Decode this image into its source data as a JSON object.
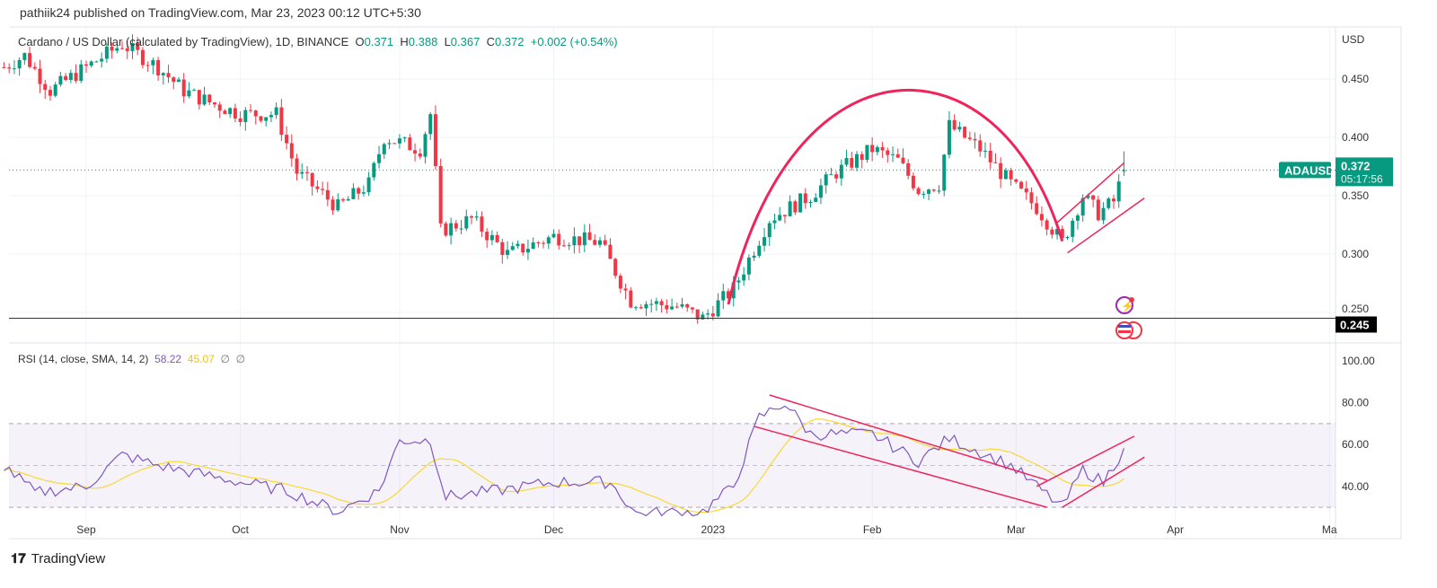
{
  "header": {
    "published": "pathiik24 published on TradingView.com, Mar 23, 2023 00:12 UTC+5:30"
  },
  "legend": {
    "symbol": "Cardano / US Dollar (calculated by TradingView), 1D, BINANCE",
    "o_label": "O",
    "o": "0.371",
    "h_label": "H",
    "h": "0.388",
    "l_label": "L",
    "l": "0.367",
    "c_label": "C",
    "c": "0.372",
    "change": "+0.002 (+0.54%)"
  },
  "rsi_legend": {
    "label": "RSI (14, close, SMA, 14, 2)",
    "rsi": "58.22",
    "sma": "45.07",
    "x1": "∅",
    "x2": "∅"
  },
  "price_axis": {
    "unit": "USD",
    "ticks": [
      "0.450",
      "0.400",
      "0.350",
      "0.300",
      "0.250"
    ],
    "symbol_tag": "ADAUSD",
    "last_price": "0.372",
    "countdown": "05:17:56",
    "line_label": "0.245"
  },
  "rsi_axis": {
    "ticks": [
      "100.00",
      "80.00",
      "60.00",
      "40.00"
    ]
  },
  "time_axis": {
    "ticks": [
      [
        "Sep",
        "2022-09-01"
      ],
      [
        "Oct",
        "2022-10-01"
      ],
      [
        "Nov",
        "2022-11-01"
      ],
      [
        "Dec",
        "2022-12-01"
      ],
      [
        "2023",
        "2023-01-01"
      ],
      [
        "Feb",
        "2023-02-01"
      ],
      [
        "Mar",
        "2023-03-01"
      ],
      [
        "Apr",
        "2023-04-01"
      ],
      [
        "Ma",
        "2023-05-01"
      ]
    ]
  },
  "footer": {
    "brand": "TradingView"
  },
  "colors": {
    "up": "#089981",
    "down": "#f23645",
    "rsi": "#7e57c2",
    "sma": "#f7d933",
    "drawing": "#f0245a",
    "band": "#7e57c2"
  },
  "chart_data": {
    "type": "candlestick",
    "title": "Cardano / US Dollar (calculated by TradingView), 1D, BINANCE",
    "ylim": [
      0.23,
      0.5
    ],
    "approx_close": [
      [
        "2022-08-16",
        0.46
      ],
      [
        "2022-08-20",
        0.47
      ],
      [
        "2022-08-25",
        0.44
      ],
      [
        "2022-09-01",
        0.46
      ],
      [
        "2022-09-08",
        0.48
      ],
      [
        "2022-09-15",
        0.46
      ],
      [
        "2022-09-20",
        0.44
      ],
      [
        "2022-09-25",
        0.43
      ],
      [
        "2022-10-01",
        0.42
      ],
      [
        "2022-10-08",
        0.42
      ],
      [
        "2022-10-12",
        0.37
      ],
      [
        "2022-10-20",
        0.34
      ],
      [
        "2022-10-26",
        0.36
      ],
      [
        "2022-10-29",
        0.4
      ],
      [
        "2022-11-05",
        0.39
      ],
      [
        "2022-11-07",
        0.42
      ],
      [
        "2022-11-09",
        0.32
      ],
      [
        "2022-11-15",
        0.33
      ],
      [
        "2022-11-22",
        0.3
      ],
      [
        "2022-12-01",
        0.315
      ],
      [
        "2022-12-10",
        0.31
      ],
      [
        "2022-12-16",
        0.26
      ],
      [
        "2022-12-25",
        0.255
      ],
      [
        "2022-12-30",
        0.245
      ],
      [
        "2023-01-05",
        0.27
      ],
      [
        "2023-01-12",
        0.33
      ],
      [
        "2023-01-20",
        0.35
      ],
      [
        "2023-01-25",
        0.37
      ],
      [
        "2023-02-01",
        0.39
      ],
      [
        "2023-02-06",
        0.38
      ],
      [
        "2023-02-10",
        0.355
      ],
      [
        "2023-02-14",
        0.36
      ],
      [
        "2023-02-16",
        0.41
      ],
      [
        "2023-02-22",
        0.39
      ],
      [
        "2023-02-28",
        0.36
      ],
      [
        "2023-03-05",
        0.34
      ],
      [
        "2023-03-10",
        0.31
      ],
      [
        "2023-03-14",
        0.35
      ],
      [
        "2023-03-17",
        0.335
      ],
      [
        "2023-03-20",
        0.345
      ],
      [
        "2023-03-22",
        0.372
      ]
    ],
    "horizontal_line": 0.245,
    "drawings": {
      "arc": [
        [
          "2023-01-04",
          0.257
        ],
        [
          "2023-02-07",
          0.4225
        ],
        [
          "2023-03-10",
          0.311
        ]
      ],
      "channel": [
        [
          [
            "2023-03-09",
            0.327
          ],
          [
            "2023-03-22",
            0.378
          ]
        ],
        [
          [
            "2023-03-11",
            0.301
          ],
          [
            "2023-03-26",
            0.348
          ]
        ]
      ]
    },
    "rsi": {
      "ylim": [
        28,
        102
      ],
      "bands": [
        30,
        70
      ],
      "mid": 50,
      "approx": [
        [
          "2022-08-16",
          50
        ],
        [
          "2022-08-22",
          37
        ],
        [
          "2022-09-01",
          40
        ],
        [
          "2022-09-08",
          55
        ],
        [
          "2022-09-15",
          50
        ],
        [
          "2022-10-01",
          42
        ],
        [
          "2022-10-10",
          38
        ],
        [
          "2022-10-20",
          28
        ],
        [
          "2022-10-28",
          38
        ],
        [
          "2022-11-01",
          62
        ],
        [
          "2022-11-07",
          62
        ],
        [
          "2022-11-10",
          35
        ],
        [
          "2022-11-20",
          38
        ],
        [
          "2022-12-01",
          42
        ],
        [
          "2022-12-12",
          42
        ],
        [
          "2022-12-17",
          27
        ],
        [
          "2022-12-30",
          28
        ],
        [
          "2023-01-05",
          40
        ],
        [
          "2023-01-10",
          73
        ],
        [
          "2023-01-15",
          80
        ],
        [
          "2023-01-20",
          65
        ],
        [
          "2023-02-01",
          65
        ],
        [
          "2023-02-10",
          52
        ],
        [
          "2023-02-16",
          63
        ],
        [
          "2023-02-28",
          50
        ],
        [
          "2023-03-05",
          40
        ],
        [
          "2023-03-10",
          30
        ],
        [
          "2023-03-14",
          48
        ],
        [
          "2023-03-18",
          42
        ],
        [
          "2023-03-22",
          58
        ]
      ],
      "drawings": [
        [
          [
            "2023-01-12",
            83.7
          ],
          [
            "2023-03-07",
            43
          ]
        ],
        [
          [
            "2023-01-09",
            68.7
          ],
          [
            "2023-03-07",
            30
          ]
        ],
        [
          [
            "2023-03-05",
            40
          ],
          [
            "2023-03-24",
            64
          ]
        ],
        [
          [
            "2023-03-10",
            30
          ],
          [
            "2023-03-26",
            54
          ]
        ]
      ]
    }
  }
}
